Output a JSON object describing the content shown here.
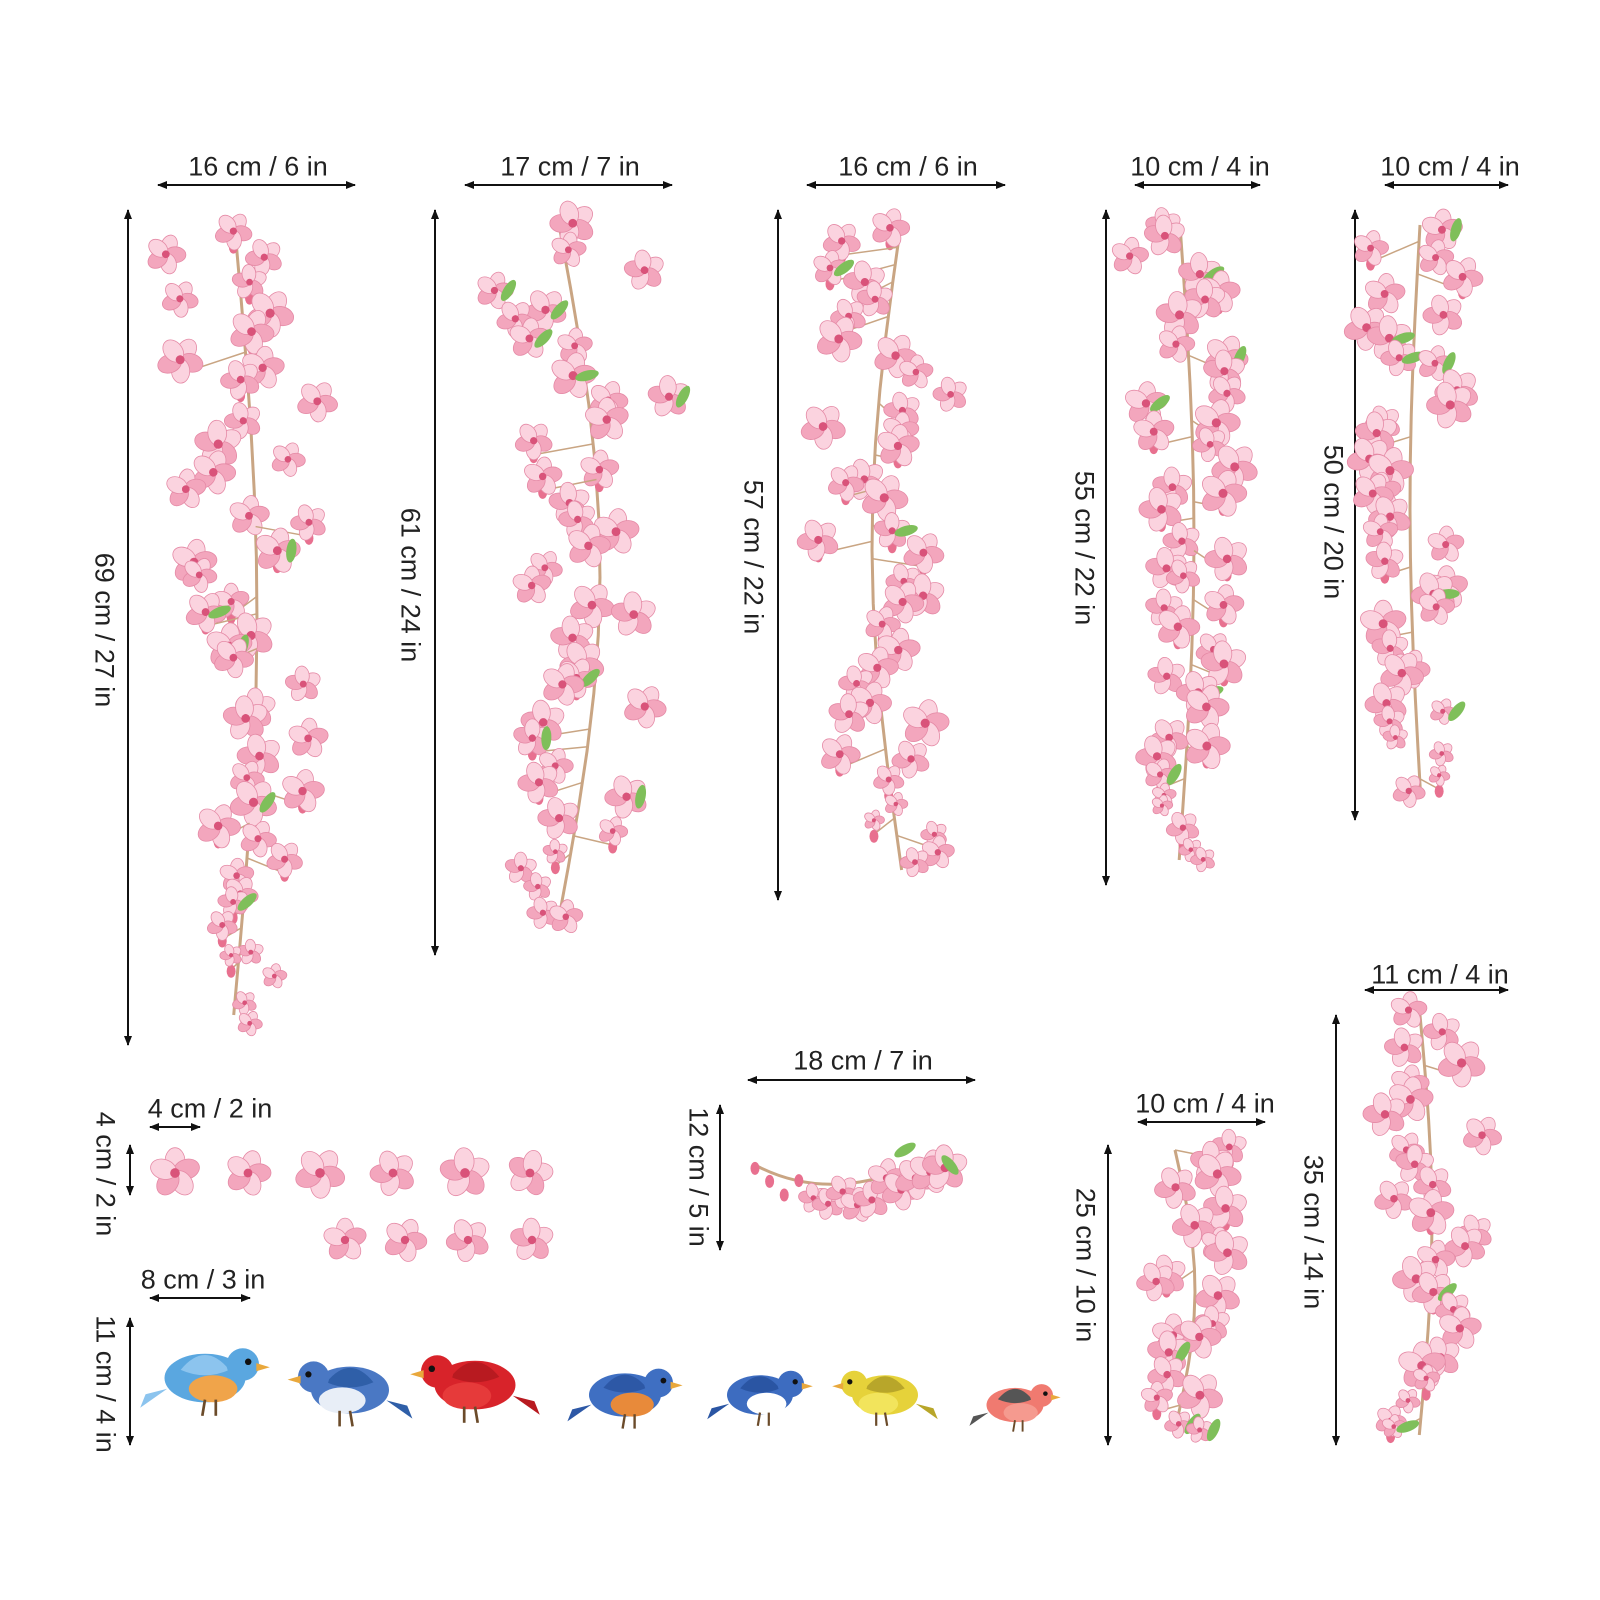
{
  "colors": {
    "petal": "#f3a6bd",
    "petal_light": "#fbd3df",
    "petal_center": "#d9537a",
    "bud": "#e8708f",
    "stem": "#c9a583",
    "leaf": "#7fbf5a",
    "line": "#111111"
  },
  "dimensions": {
    "branch1_width": "16 cm / 6 in",
    "branch1_height": "69 cm / 27 in",
    "branch2_width": "17 cm / 7 in",
    "branch2_height": "61 cm / 24 in",
    "branch3_width": "16 cm / 6 in",
    "branch3_height": "57 cm / 22 in",
    "branch4_width": "10 cm / 4 in",
    "branch4_height": "55 cm / 22 in",
    "branch5_width": "10 cm / 4 in",
    "branch5_height": "50 cm / 20 in",
    "flower_width": "4 cm / 2 in",
    "flower_height": "4 cm / 2 in",
    "spray_width": "18 cm / 7 in",
    "spray_height": "12 cm / 5 in",
    "bird_width": "8 cm / 3 in",
    "bird_height": "11 cm / 4 in",
    "small_branch_width": "10 cm / 4 in",
    "small_branch_height": "25 cm / 10 in",
    "branch6_width": "11 cm / 4 in",
    "branch6_height": "35 cm / 14 in"
  },
  "birds": [
    {
      "name": "bluebird-flying",
      "body": "#5aa7e0",
      "wing": "#8cc4ee",
      "breast": "#f0a44a"
    },
    {
      "name": "blue-jay",
      "body": "#4a78c4",
      "wing": "#2f5fa8",
      "breast": "#e8eef7"
    },
    {
      "name": "cardinal",
      "body": "#d8232a",
      "wing": "#b81a20",
      "breast": "#e63a3a"
    },
    {
      "name": "eastern-bluebird",
      "body": "#3f6fc2",
      "wing": "#2d58a6",
      "breast": "#e88a3a"
    },
    {
      "name": "blue-songbird",
      "body": "#3d6cc0",
      "wing": "#2a55a3",
      "breast": "#ffffff"
    },
    {
      "name": "yellow-finch",
      "body": "#e6d23a",
      "wing": "#b8a62a",
      "breast": "#f2e45c"
    },
    {
      "name": "bullfinch",
      "body": "#f07a70",
      "wing": "#555555",
      "breast": "#f59a8f"
    }
  ]
}
